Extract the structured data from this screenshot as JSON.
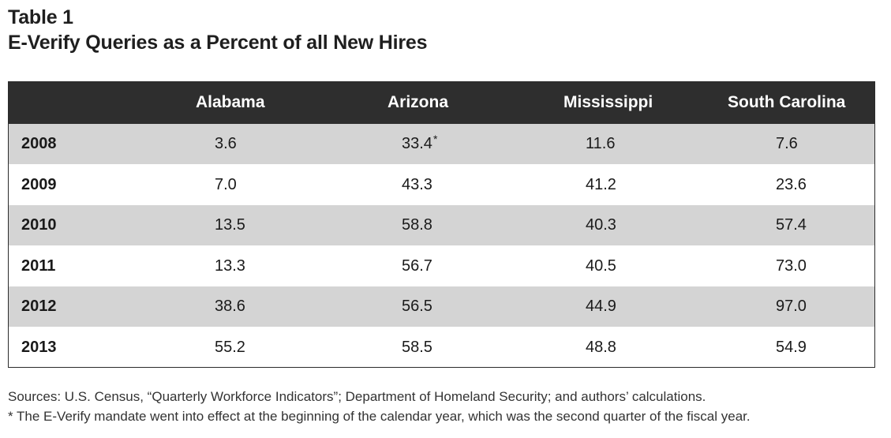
{
  "title": {
    "line1": "Table 1",
    "line2": "E-Verify Queries as a Percent of all New Hires"
  },
  "table": {
    "headers": [
      "",
      "Alabama",
      "Arizona",
      "Mississippi",
      "South Carolina"
    ],
    "rows": [
      {
        "year": "2008",
        "values": [
          "3.6",
          "33.4",
          "11.6",
          "7.6"
        ],
        "marks": [
          "",
          "*",
          "",
          ""
        ]
      },
      {
        "year": "2009",
        "values": [
          "7.0",
          "43.3",
          "41.2",
          "23.6"
        ],
        "marks": [
          "",
          "",
          "",
          ""
        ]
      },
      {
        "year": "2010",
        "values": [
          "13.5",
          "58.8",
          "40.3",
          "57.4"
        ],
        "marks": [
          "",
          "",
          "",
          ""
        ]
      },
      {
        "year": "2011",
        "values": [
          "13.3",
          "56.7",
          "40.5",
          "73.0"
        ],
        "marks": [
          "",
          "",
          "",
          ""
        ]
      },
      {
        "year": "2012",
        "values": [
          "38.6",
          "56.5",
          "44.9",
          "97.0"
        ],
        "marks": [
          "",
          "",
          "",
          ""
        ]
      },
      {
        "year": "2013",
        "values": [
          "55.2",
          "58.5",
          "48.8",
          "54.9"
        ],
        "marks": [
          "",
          "",
          "",
          ""
        ]
      }
    ]
  },
  "colors": {
    "header_bg": "#2e2e2e",
    "shaded_row": "#d4d4d4"
  },
  "footnotes": {
    "sources": "Sources: U.S. Census, “Quarterly Workforce Indicators”; Department of Homeland Security; and authors’ calculations.",
    "asterisk": "* The E-Verify mandate went into effect at the beginning of the calendar year, which was the second quarter of the fiscal year."
  }
}
